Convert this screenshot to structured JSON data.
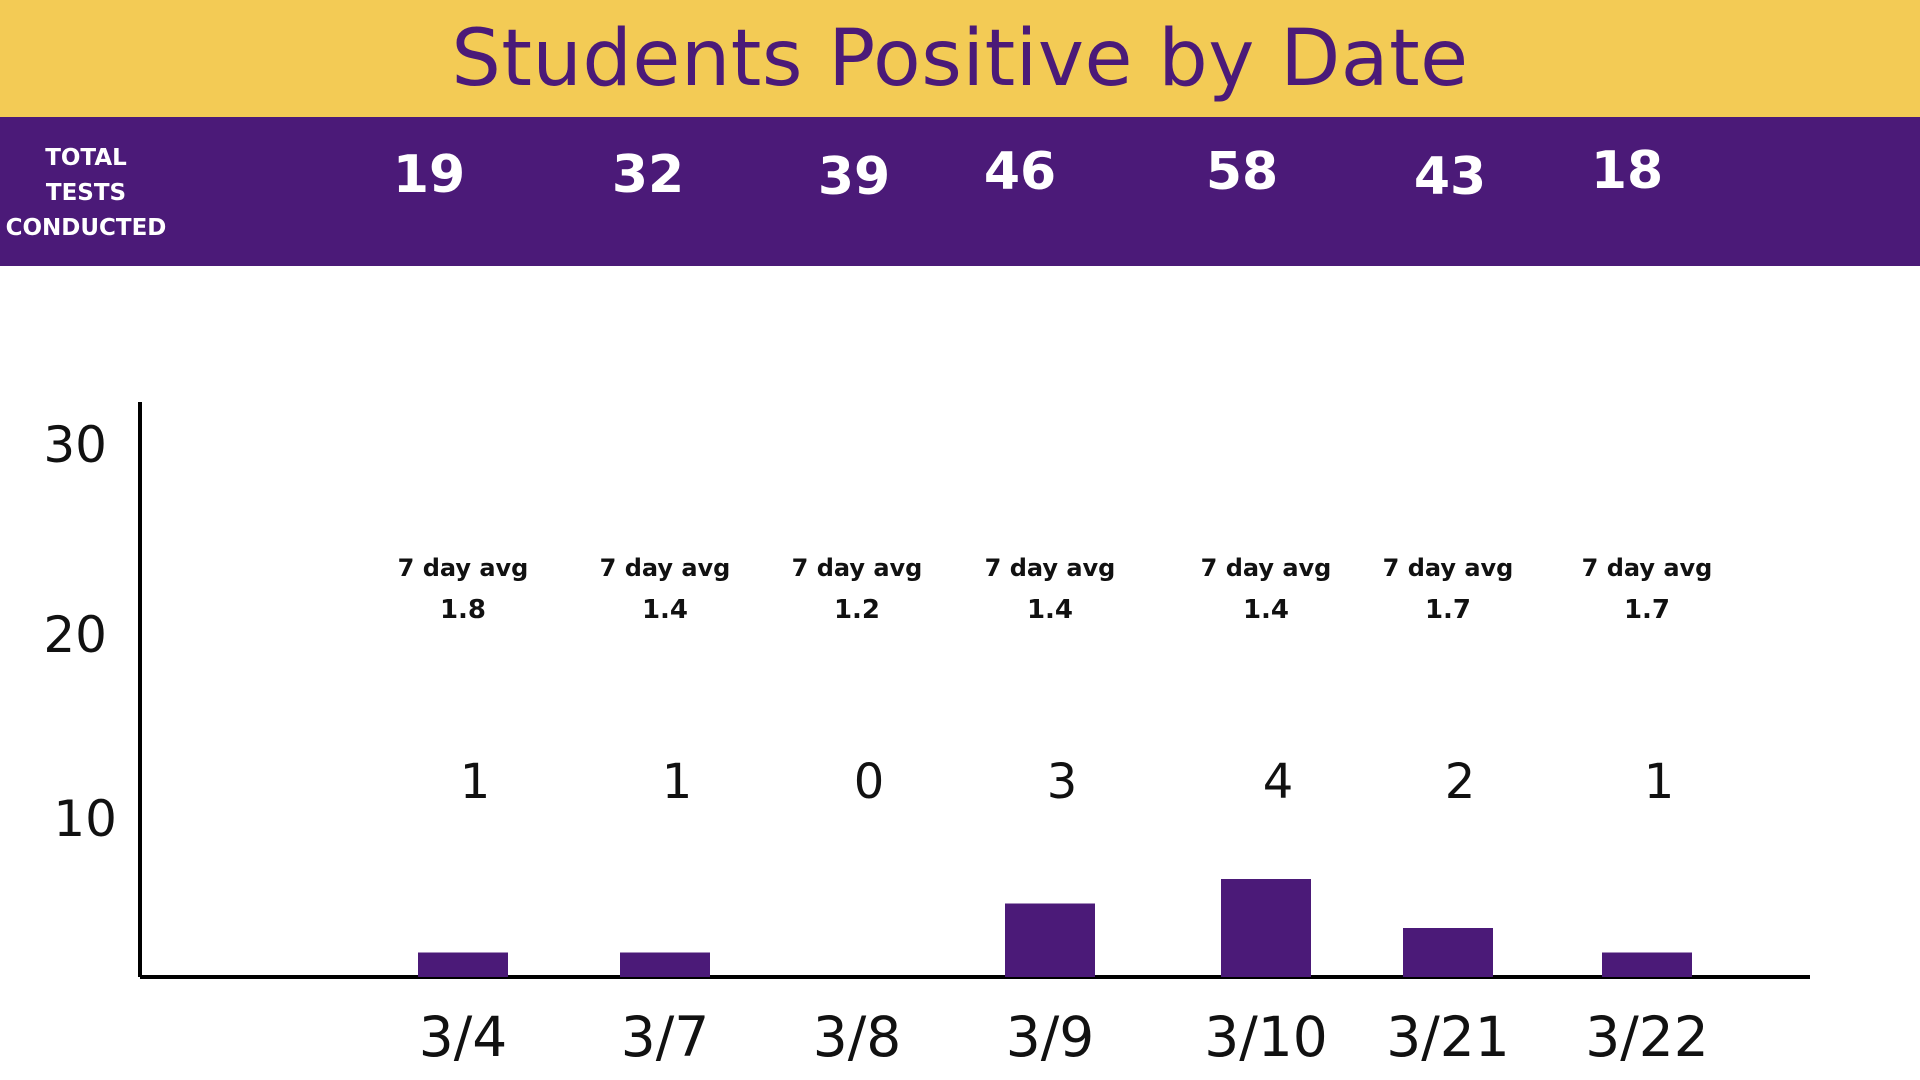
{
  "header": {
    "title": "Students Positive by Date"
  },
  "tests": {
    "label_lines": [
      "TOTAL",
      "TESTS",
      "CONDUCTED"
    ],
    "counts": [
      "19",
      "32",
      "39",
      "46",
      "58",
      "43",
      "18"
    ]
  },
  "colors": {
    "title_band": "#f3cb55",
    "purple": "#4b1a78",
    "axis": "#000000"
  },
  "chart_data": {
    "type": "bar",
    "title": "Students Positive by Date",
    "xlabel": "",
    "ylabel": "",
    "categories": [
      "3/4",
      "3/7",
      "3/8",
      "3/9",
      "3/10",
      "3/21",
      "3/22"
    ],
    "values": [
      1,
      1,
      0,
      3,
      4,
      2,
      1
    ],
    "value_labels": [
      "1",
      "1",
      "0",
      "3",
      "4",
      "2",
      "1"
    ],
    "avg_label": "7 day avg",
    "seven_day_avg": [
      "1.8",
      "1.4",
      "1.2",
      "1.4",
      "1.4",
      "1.7",
      "1.7"
    ],
    "yticks": [
      "10",
      "20",
      "30"
    ],
    "ylim": [
      0,
      30
    ],
    "grid": false,
    "legend": "none",
    "color": "#4b1a78"
  }
}
